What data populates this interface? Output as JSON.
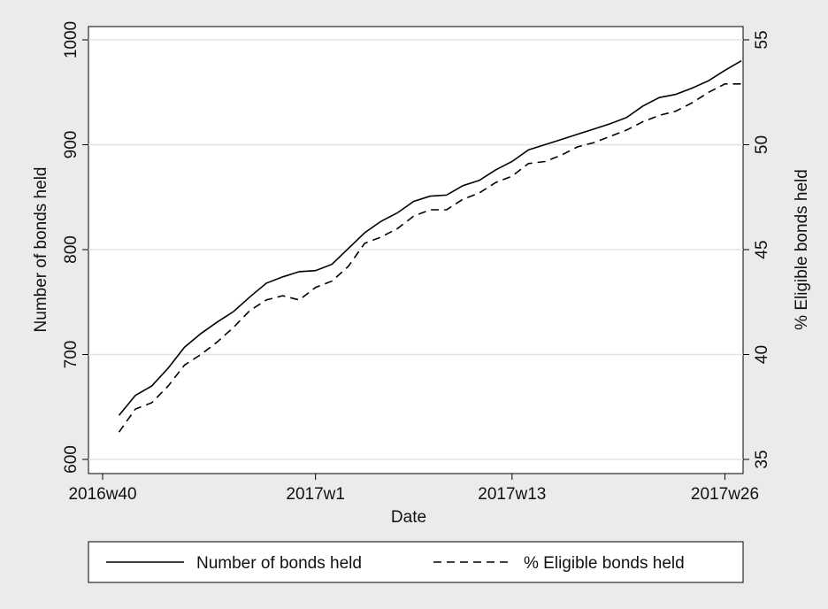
{
  "chart_data": {
    "type": "line",
    "x_label": "Date",
    "y_label": "Number of bonds held",
    "y2_label": "% Eligible bonds held",
    "x": [
      "2016w41",
      "2016w42",
      "2016w43",
      "2016w44",
      "2016w45",
      "2016w46",
      "2016w47",
      "2016w48",
      "2016w49",
      "2016w50",
      "2016w51",
      "2016w52",
      "2017w1",
      "2017w2",
      "2017w3",
      "2017w4",
      "2017w5",
      "2017w6",
      "2017w7",
      "2017w8",
      "2017w9",
      "2017w10",
      "2017w11",
      "2017w12",
      "2017w13",
      "2017w14",
      "2017w15",
      "2017w16",
      "2017w17",
      "2017w18",
      "2017w19",
      "2017w20",
      "2017w21",
      "2017w22",
      "2017w23",
      "2017w24",
      "2017w25",
      "2017w26",
      "2017w27"
    ],
    "series": [
      {
        "name": "Number of bonds held",
        "color": "#000000",
        "line_style": "solid",
        "values": [
          642,
          661,
          670,
          687,
          707,
          720,
          731,
          741,
          755,
          768,
          774,
          779,
          780,
          786,
          801,
          816,
          827,
          835,
          846,
          851,
          852,
          861,
          866,
          876,
          884,
          895,
          900,
          905,
          910,
          915,
          920,
          926,
          937,
          945,
          948,
          954,
          961,
          971,
          980
        ]
      },
      {
        "name": "% Eligible bonds held",
        "color": "#000000",
        "line_style": "dashed",
        "axis": "y2",
        "values": [
          36.3,
          37.4,
          37.7,
          38.5,
          39.5,
          40.0,
          40.6,
          41.3,
          42.1,
          42.6,
          42.8,
          42.6,
          43.2,
          43.5,
          44.2,
          45.3,
          45.6,
          46.0,
          46.6,
          46.9,
          46.9,
          47.4,
          47.7,
          48.2,
          48.5,
          49.1,
          49.2,
          49.5,
          49.9,
          50.1,
          50.4,
          50.7,
          51.1,
          51.4,
          51.6,
          52.0,
          52.5,
          52.9,
          52.9
        ]
      }
    ],
    "xlim": [
      "2016w40",
      "2017w27"
    ],
    "xticks": [
      "2016w40",
      "2017w1",
      "2017w13",
      "2017w26"
    ],
    "ylim": [
      600,
      1000
    ],
    "yticks": [
      600,
      700,
      800,
      900,
      1000
    ],
    "y2lim": [
      35,
      55
    ],
    "y2ticks": [
      35,
      40,
      45,
      50,
      55
    ],
    "grid": true,
    "legend": "bottom"
  }
}
